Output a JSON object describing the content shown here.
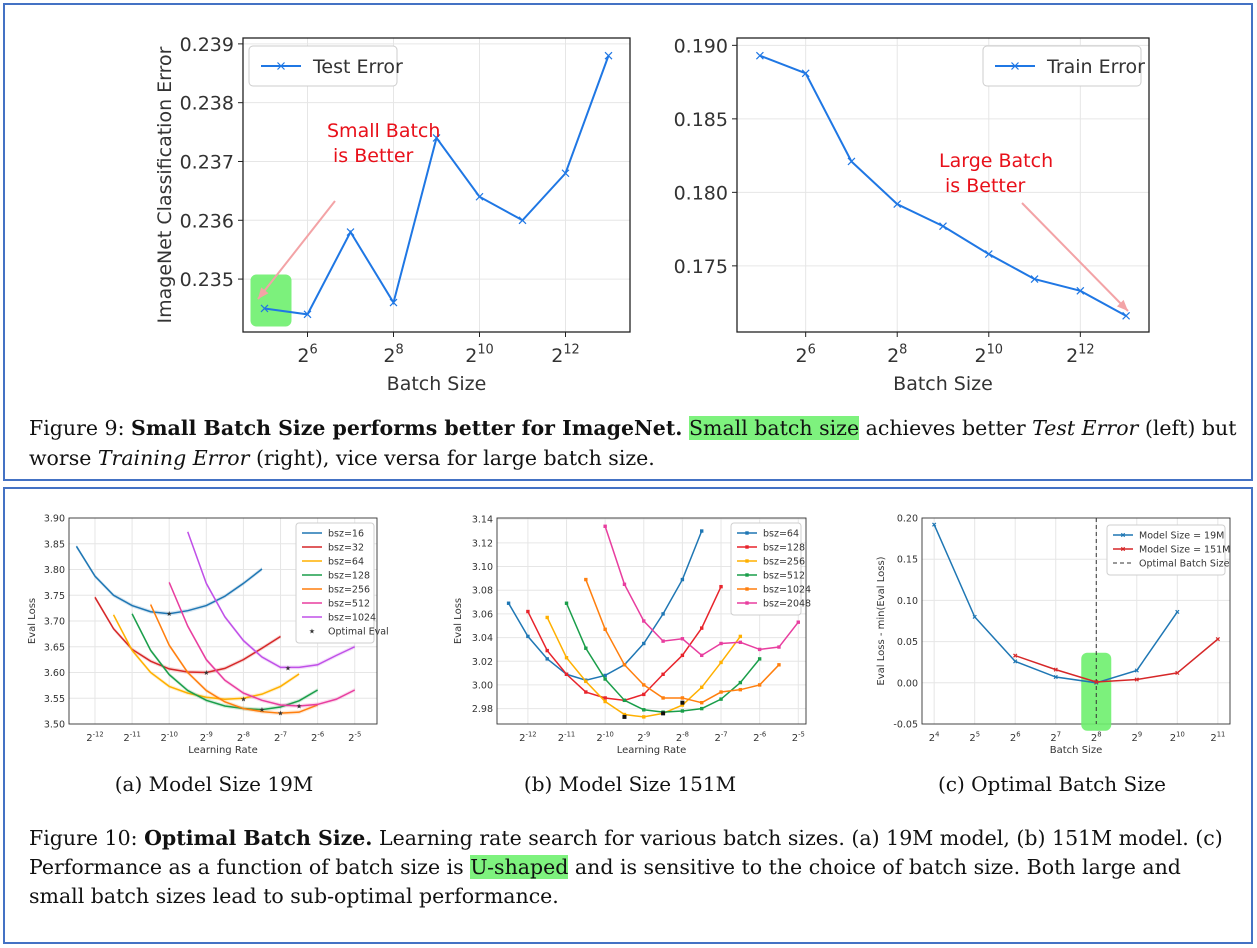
{
  "chart_data": [
    {
      "type": "line",
      "id": "test-error",
      "x": [
        5,
        6,
        7,
        8,
        9,
        10,
        11,
        12,
        13
      ],
      "x_tick_labels": [
        "2^6",
        "2^8",
        "2^10",
        "2^12"
      ],
      "xlabel": "Batch Size",
      "ylabel": "ImageNet Classification Error",
      "ylim": [
        0.2341,
        0.2391
      ],
      "y_ticks": [
        0.235,
        0.236,
        0.237,
        0.238,
        0.239
      ],
      "y_tick_labels": [
        "0.235",
        "0.236",
        "0.237",
        "0.238",
        "0.239"
      ],
      "series": [
        {
          "name": "Test Error",
          "values": [
            0.2345,
            0.2344,
            0.2358,
            0.2346,
            0.2374,
            0.2364,
            0.236,
            0.2368,
            0.2388
          ],
          "color": "#1f77e4"
        }
      ],
      "legend": "top-left",
      "annotation": {
        "line1": "Small Batch",
        "line2": "is Better",
        "color": "#e8101a"
      },
      "grid": true
    },
    {
      "type": "line",
      "id": "train-error",
      "x": [
        5,
        6,
        7,
        8,
        9,
        10,
        11,
        12,
        13
      ],
      "x_tick_labels": [
        "2^6",
        "2^8",
        "2^10",
        "2^12"
      ],
      "xlabel": "Batch Size",
      "ylim": [
        0.1705,
        0.1905
      ],
      "y_ticks": [
        0.175,
        0.18,
        0.185,
        0.19
      ],
      "y_tick_labels": [
        "0.175",
        "0.180",
        "0.185",
        "0.190"
      ],
      "series": [
        {
          "name": "Train Error",
          "values": [
            0.1893,
            0.1881,
            0.1821,
            0.1792,
            0.1777,
            0.1758,
            0.1741,
            0.1733,
            0.1716
          ],
          "color": "#1f77e4"
        }
      ],
      "legend": "top-right",
      "annotation": {
        "line1": "Large Batch",
        "line2": "is Better",
        "color": "#e8101a"
      },
      "grid": true
    },
    {
      "type": "line",
      "id": "model-19m",
      "xlabel": "Learning Rate",
      "ylabel": "Eval Loss",
      "xlim": [
        -12.7,
        -4.4
      ],
      "x_ticks": [
        -12,
        -11,
        -10,
        -9,
        -8,
        -7,
        -6,
        -5
      ],
      "x_tick_labels": [
        "2^-12",
        "2^-11",
        "2^-10",
        "2^-9",
        "2^-8",
        "2^-7",
        "2^-6",
        "2^-5"
      ],
      "ylim": [
        3.5,
        3.9
      ],
      "y_ticks": [
        3.5,
        3.55,
        3.6,
        3.65,
        3.7,
        3.75,
        3.8,
        3.85,
        3.9
      ],
      "y_tick_labels": [
        "3.50",
        "3.55",
        "3.60",
        "3.65",
        "3.70",
        "3.75",
        "3.80",
        "3.85",
        "3.90"
      ],
      "legend": "top-right",
      "series": [
        {
          "name": "bsz=16",
          "color": "#1f77b4",
          "x": [
            -12.5,
            -12,
            -11.5,
            -11,
            -10.5,
            -10,
            -9.5,
            -9,
            -8.5,
            -8,
            -7.5
          ],
          "values": [
            3.845,
            3.787,
            3.75,
            3.73,
            3.718,
            3.714,
            3.72,
            3.73,
            3.748,
            3.773,
            3.801
          ]
        },
        {
          "name": "bsz=32",
          "color": "#d62728",
          "x": [
            -12,
            -11.5,
            -11,
            -10.5,
            -10,
            -9.5,
            -9,
            -8.5,
            -8,
            -7.5,
            -7
          ],
          "values": [
            3.746,
            3.685,
            3.645,
            3.622,
            3.607,
            3.601,
            3.6,
            3.608,
            3.625,
            3.647,
            3.67
          ]
        },
        {
          "name": "bsz=64",
          "color": "#ffb000",
          "x": [
            -11.5,
            -11,
            -10.5,
            -10,
            -9.5,
            -9,
            -8.5,
            -8,
            -7.5,
            -7,
            -6.5
          ],
          "values": [
            3.712,
            3.643,
            3.6,
            3.573,
            3.56,
            3.552,
            3.548,
            3.55,
            3.558,
            3.573,
            3.597
          ]
        },
        {
          "name": "bsz=128",
          "color": "#1a9e4a",
          "x": [
            -11,
            -10.5,
            -10,
            -9.5,
            -9,
            -8.5,
            -8,
            -7.5,
            -7,
            -6.5,
            -6
          ],
          "values": [
            3.714,
            3.643,
            3.596,
            3.565,
            3.546,
            3.535,
            3.53,
            3.528,
            3.533,
            3.545,
            3.566
          ]
        },
        {
          "name": "bsz=256",
          "color": "#ff7f0e",
          "x": [
            -10.5,
            -10,
            -9.5,
            -9,
            -8.5,
            -8,
            -7.5,
            -7,
            -6.5,
            -6
          ],
          "values": [
            3.732,
            3.653,
            3.6,
            3.565,
            3.543,
            3.53,
            3.524,
            3.521,
            3.523,
            3.537
          ]
        },
        {
          "name": "bsz=512",
          "color": "#e83e9f",
          "x": [
            -10,
            -9.5,
            -9,
            -8.5,
            -8,
            -7.5,
            -7,
            -6.5,
            -6,
            -5.5,
            -5
          ],
          "values": [
            3.775,
            3.69,
            3.625,
            3.585,
            3.56,
            3.546,
            3.537,
            3.535,
            3.538,
            3.548,
            3.566
          ]
        },
        {
          "name": "bsz=1024",
          "color": "#c050e8",
          "x": [
            -9.5,
            -9,
            -8.5,
            -8,
            -7.5,
            -7,
            -6.5,
            -6,
            -5.5,
            -5
          ],
          "values": [
            3.873,
            3.773,
            3.708,
            3.662,
            3.63,
            3.61,
            3.61,
            3.615,
            3.633,
            3.65
          ]
        }
      ],
      "optimal_eval": {
        "name": "Optimal Eval",
        "points": [
          [
            -10,
            3.714
          ],
          [
            -9,
            3.6
          ],
          [
            -8,
            3.548
          ],
          [
            -7.5,
            3.528
          ],
          [
            -7,
            3.521
          ],
          [
            -6.5,
            3.535
          ],
          [
            -6.8,
            3.608
          ]
        ]
      },
      "grid": true
    },
    {
      "type": "line",
      "id": "model-151m",
      "xlabel": "Learning Rate",
      "ylabel": "Eval Loss",
      "xlim": [
        -12.8,
        -4.8
      ],
      "x_ticks": [
        -12,
        -11,
        -10,
        -9,
        -8,
        -7,
        -6,
        -5
      ],
      "x_tick_labels": [
        "2^-12",
        "2^-11",
        "2^-10",
        "2^-9",
        "2^-8",
        "2^-7",
        "2^-6",
        "2^-5"
      ],
      "ylim": [
        2.967,
        3.141
      ],
      "y_ticks": [
        2.98,
        3.0,
        3.02,
        3.04,
        3.06,
        3.08,
        3.1,
        3.12,
        3.14
      ],
      "y_tick_labels": [
        "2.98",
        "3.00",
        "3.02",
        "3.04",
        "3.06",
        "3.08",
        "3.10",
        "3.12",
        "3.14"
      ],
      "legend": "top-right",
      "series": [
        {
          "name": "bsz=64",
          "color": "#1f77b4",
          "x": [
            -12.5,
            -12,
            -11.5,
            -11,
            -10.5,
            -10,
            -9.5,
            -9,
            -8.5,
            -8,
            -7.5
          ],
          "values": [
            3.069,
            3.041,
            3.022,
            3.009,
            3.004,
            3.008,
            3.017,
            3.035,
            3.06,
            3.089,
            3.13
          ]
        },
        {
          "name": "bsz=128",
          "color": "#e8242c",
          "x": [
            -12,
            -11.5,
            -11,
            -10.5,
            -10,
            -9.5,
            -9,
            -8.5,
            -8,
            -7.5,
            -7
          ],
          "values": [
            3.062,
            3.029,
            3.009,
            2.994,
            2.989,
            2.987,
            2.992,
            3.009,
            3.025,
            3.048,
            3.083
          ]
        },
        {
          "name": "bsz=256",
          "color": "#ffb000",
          "x": [
            -11.5,
            -11,
            -10.5,
            -10,
            -9.5,
            -9,
            -8.5,
            -8,
            -7.5,
            -7,
            -6.5
          ],
          "values": [
            3.057,
            3.023,
            3.003,
            2.986,
            2.975,
            2.973,
            2.976,
            2.983,
            2.998,
            3.019,
            3.041
          ]
        },
        {
          "name": "bsz=512",
          "color": "#1a9e4a",
          "x": [
            -11,
            -10.5,
            -10,
            -9.5,
            -9,
            -8.5,
            -8,
            -7.5,
            -7,
            -6.5,
            -6
          ],
          "values": [
            3.069,
            3.031,
            3.005,
            2.987,
            2.979,
            2.977,
            2.978,
            2.98,
            2.988,
            3.002,
            3.022
          ]
        },
        {
          "name": "bsz=1024",
          "color": "#ff7f0e",
          "x": [
            -10.5,
            -10,
            -9.5,
            -9,
            -8.5,
            -8,
            -7.5,
            -7,
            -6.5,
            -6,
            -5.5
          ],
          "values": [
            3.089,
            3.047,
            3.017,
            3.0,
            2.989,
            2.989,
            2.985,
            2.994,
            2.996,
            3.0,
            3.017
          ]
        },
        {
          "name": "bsz=2048",
          "color": "#e83e9f",
          "x": [
            -10,
            -9.5,
            -9,
            -8.5,
            -8,
            -7.5,
            -7,
            -6.5,
            -6,
            -5.5,
            -5
          ],
          "values": [
            3.134,
            3.085,
            3.054,
            3.037,
            3.039,
            3.025,
            3.035,
            3.036,
            3.03,
            3.032,
            3.053
          ]
        }
      ],
      "optimal_points": [
        [
          -9.5,
          2.973
        ],
        [
          -8.5,
          2.976
        ],
        [
          -8,
          2.985
        ]
      ],
      "grid": true
    },
    {
      "type": "line",
      "id": "optimal-batch-size",
      "xlabel": "Batch Size",
      "ylabel": "Eval Loss - min(Eval Loss)",
      "xlim": [
        3.7,
        11.3
      ],
      "x_ticks": [
        4,
        5,
        6,
        7,
        8,
        9,
        10,
        11
      ],
      "x_tick_labels": [
        "2^4",
        "2^5",
        "2^6",
        "2^7",
        "2^8",
        "2^9",
        "2^10",
        "2^11"
      ],
      "ylim": [
        -0.05,
        0.2
      ],
      "y_ticks": [
        -0.05,
        0.0,
        0.05,
        0.1,
        0.15,
        0.2
      ],
      "y_tick_labels": [
        "-0.05",
        "0.00",
        "0.05",
        "0.10",
        "0.15",
        "0.20"
      ],
      "legend": "top-right",
      "series": [
        {
          "name": "Model Size = 19M",
          "color": "#1f77b4",
          "x": [
            4,
            5,
            6,
            7,
            8,
            9,
            10
          ],
          "values": [
            0.192,
            0.08,
            0.026,
            0.007,
            0.0,
            0.015,
            0.086
          ]
        },
        {
          "name": "Model Size = 151M",
          "color": "#d62728",
          "x": [
            6,
            7,
            8,
            9,
            10,
            11
          ],
          "values": [
            0.033,
            0.016,
            0.001,
            0.004,
            0.012,
            0.053
          ]
        }
      ],
      "vline": {
        "name": "Optimal Batch Size",
        "x": 8
      },
      "grid": true
    }
  ],
  "fig9": {
    "prefix": "Figure 9: ",
    "bold": "Small Batch Size performs better for ImageNet.",
    "highlight": "Small batch size",
    "t1": " achieves better ",
    "i1": "Test Error",
    "t2": " (left) but worse ",
    "i2": "Training Error",
    "t3": " (right), vice versa for large batch size."
  },
  "fig10": {
    "sub_a": "(a) Model Size 19M",
    "sub_b": "(b) Model Size 151M",
    "sub_c": "(c) Optimal Batch Size",
    "prefix": "Figure 10: ",
    "bold": "Optimal Batch Size.",
    "t1": " Learning rate search for various batch sizes. (a) 19M model, (b) 151M model. (c) Performance as a function of batch size is ",
    "highlight": "U-shaped",
    "t2": " and is sensitive to the choice of batch size. Both large and small batch sizes lead to sub-optimal performance."
  }
}
